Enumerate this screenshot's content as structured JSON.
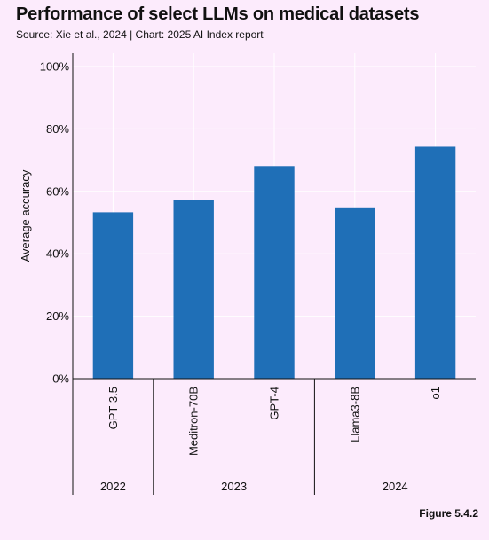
{
  "title": "Performance of select LLMs on medical datasets",
  "subtitle": "Source: Xie et al., 2024 | Chart: 2025 AI Index report",
  "figure_label": "Figure 5.4.2",
  "chart_data": {
    "type": "bar",
    "title": "Performance of select LLMs on medical datasets",
    "ylabel": "Average accuracy",
    "xlabel": "",
    "categories": [
      "GPT-3.5",
      "Meditron-70B",
      "GPT-4",
      "Llama3-8B",
      "o1"
    ],
    "groups": [
      {
        "label": "2022",
        "categories": [
          "GPT-3.5"
        ]
      },
      {
        "label": "2023",
        "categories": [
          "Meditron-70B",
          "GPT-4"
        ]
      },
      {
        "label": "2024",
        "categories": [
          "Llama3-8B",
          "o1"
        ]
      }
    ],
    "values": [
      53.3,
      57.3,
      68.1,
      54.6,
      74.3
    ],
    "ylim": [
      0,
      100
    ],
    "yticks": [
      0,
      20,
      40,
      60,
      80,
      100
    ],
    "ytick_labels": [
      "0%",
      "20%",
      "40%",
      "60%",
      "80%",
      "100%"
    ],
    "grid": true,
    "bar_color": "#1f6fb7",
    "grid_color": "#ffffff"
  }
}
